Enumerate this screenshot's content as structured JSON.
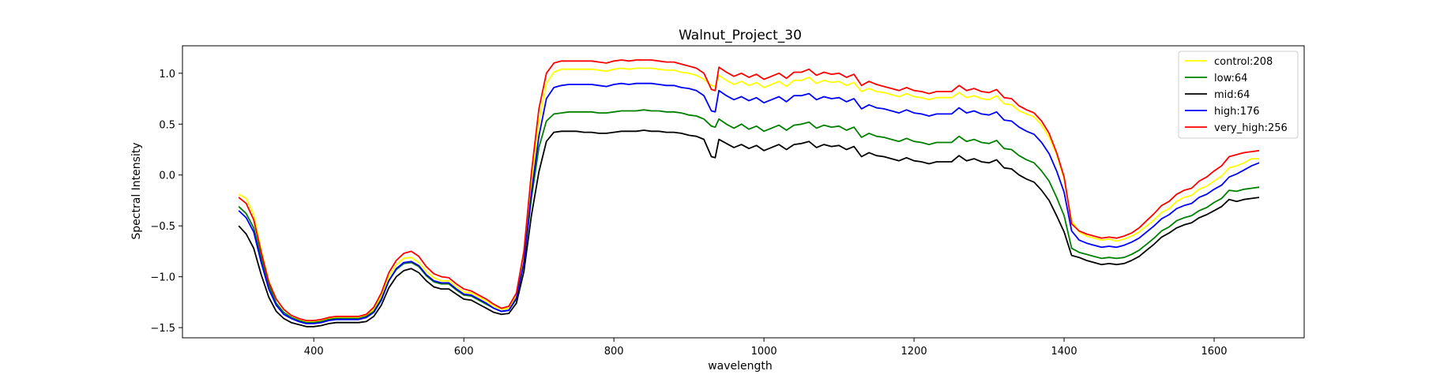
{
  "chart_data": {
    "type": "line",
    "title": "Walnut_Project_30",
    "xlabel": "wavelength",
    "ylabel": "Spectral Intensity",
    "xlim": [
      225,
      1720
    ],
    "ylim": [
      -1.6,
      1.27
    ],
    "xticks": [
      400,
      600,
      800,
      1000,
      1200,
      1400,
      1600
    ],
    "yticks": [
      -1.5,
      -1.0,
      -0.5,
      0.0,
      0.5,
      1.0
    ],
    "legend_position": "top-right",
    "grid": false,
    "x": [
      300,
      310,
      320,
      330,
      340,
      350,
      360,
      370,
      380,
      390,
      400,
      410,
      420,
      430,
      440,
      450,
      460,
      470,
      480,
      490,
      500,
      510,
      520,
      530,
      540,
      550,
      560,
      570,
      580,
      590,
      600,
      610,
      620,
      630,
      640,
      650,
      660,
      670,
      680,
      690,
      700,
      710,
      720,
      730,
      740,
      750,
      760,
      770,
      780,
      790,
      800,
      810,
      820,
      830,
      840,
      850,
      860,
      870,
      880,
      890,
      900,
      910,
      920,
      930,
      935,
      940,
      950,
      960,
      970,
      980,
      990,
      1000,
      1010,
      1020,
      1030,
      1040,
      1050,
      1060,
      1070,
      1080,
      1090,
      1100,
      1110,
      1120,
      1130,
      1140,
      1150,
      1160,
      1170,
      1180,
      1190,
      1200,
      1210,
      1220,
      1230,
      1240,
      1250,
      1260,
      1270,
      1280,
      1290,
      1300,
      1310,
      1320,
      1330,
      1340,
      1350,
      1360,
      1370,
      1380,
      1390,
      1400,
      1410,
      1420,
      1430,
      1440,
      1450,
      1460,
      1470,
      1480,
      1490,
      1500,
      1510,
      1520,
      1530,
      1540,
      1550,
      1560,
      1570,
      1580,
      1590,
      1600,
      1610,
      1620,
      1630,
      1640,
      1650,
      1660
    ],
    "series": [
      {
        "name": "control:208",
        "color": "#ffff00",
        "values": [
          -0.19,
          -0.23,
          -0.39,
          -0.74,
          -1.04,
          -1.22,
          -1.32,
          -1.38,
          -1.42,
          -1.44,
          -1.44,
          -1.43,
          -1.41,
          -1.4,
          -1.4,
          -1.4,
          -1.4,
          -1.38,
          -1.32,
          -1.19,
          -1.0,
          -0.88,
          -0.82,
          -0.81,
          -0.86,
          -0.95,
          -1.01,
          -1.04,
          -1.04,
          -1.1,
          -1.15,
          -1.16,
          -1.2,
          -1.24,
          -1.29,
          -1.32,
          -1.31,
          -1.19,
          -0.82,
          -0.1,
          0.52,
          0.9,
          1.01,
          1.04,
          1.04,
          1.04,
          1.04,
          1.04,
          1.03,
          1.02,
          1.04,
          1.05,
          1.04,
          1.05,
          1.05,
          1.05,
          1.04,
          1.03,
          1.03,
          1.01,
          1.0,
          0.98,
          0.94,
          0.88,
          0.87,
          0.98,
          0.93,
          0.89,
          0.92,
          0.88,
          0.91,
          0.86,
          0.89,
          0.92,
          0.87,
          0.93,
          0.93,
          0.96,
          0.9,
          0.93,
          0.91,
          0.92,
          0.88,
          0.91,
          0.82,
          0.85,
          0.82,
          0.81,
          0.79,
          0.77,
          0.8,
          0.77,
          0.76,
          0.74,
          0.76,
          0.76,
          0.76,
          0.81,
          0.76,
          0.78,
          0.75,
          0.74,
          0.78,
          0.7,
          0.69,
          0.63,
          0.6,
          0.57,
          0.49,
          0.37,
          0.2,
          -0.04,
          -0.45,
          -0.56,
          -0.6,
          -0.62,
          -0.64,
          -0.63,
          -0.65,
          -0.63,
          -0.6,
          -0.56,
          -0.5,
          -0.44,
          -0.37,
          -0.33,
          -0.26,
          -0.22,
          -0.2,
          -0.14,
          -0.11,
          -0.06,
          -0.01,
          0.07,
          0.09,
          0.12,
          0.16,
          0.16
        ]
      },
      {
        "name": "low:64",
        "color": "#008000",
        "values": [
          -0.31,
          -0.38,
          -0.52,
          -0.81,
          -1.08,
          -1.26,
          -1.35,
          -1.4,
          -1.43,
          -1.45,
          -1.45,
          -1.44,
          -1.42,
          -1.41,
          -1.41,
          -1.41,
          -1.41,
          -1.39,
          -1.34,
          -1.22,
          -1.04,
          -0.93,
          -0.87,
          -0.86,
          -0.9,
          -0.99,
          -1.05,
          -1.07,
          -1.07,
          -1.13,
          -1.18,
          -1.19,
          -1.23,
          -1.27,
          -1.31,
          -1.34,
          -1.33,
          -1.22,
          -0.87,
          -0.23,
          0.27,
          0.53,
          0.6,
          0.61,
          0.62,
          0.62,
          0.62,
          0.62,
          0.61,
          0.61,
          0.62,
          0.63,
          0.63,
          0.63,
          0.64,
          0.63,
          0.63,
          0.62,
          0.62,
          0.61,
          0.59,
          0.58,
          0.55,
          0.48,
          0.47,
          0.55,
          0.5,
          0.46,
          0.5,
          0.45,
          0.48,
          0.43,
          0.46,
          0.49,
          0.44,
          0.49,
          0.5,
          0.52,
          0.46,
          0.49,
          0.47,
          0.48,
          0.44,
          0.47,
          0.37,
          0.41,
          0.38,
          0.37,
          0.35,
          0.33,
          0.36,
          0.33,
          0.32,
          0.3,
          0.32,
          0.32,
          0.32,
          0.38,
          0.33,
          0.35,
          0.32,
          0.31,
          0.34,
          0.26,
          0.25,
          0.19,
          0.15,
          0.12,
          0.04,
          -0.06,
          -0.22,
          -0.4,
          -0.72,
          -0.76,
          -0.78,
          -0.8,
          -0.82,
          -0.81,
          -0.82,
          -0.81,
          -0.78,
          -0.74,
          -0.68,
          -0.62,
          -0.55,
          -0.51,
          -0.45,
          -0.42,
          -0.4,
          -0.35,
          -0.32,
          -0.27,
          -0.23,
          -0.15,
          -0.16,
          -0.14,
          -0.13,
          -0.12
        ]
      },
      {
        "name": "mid:64",
        "color": "#000000",
        "values": [
          -0.5,
          -0.58,
          -0.72,
          -0.98,
          -1.2,
          -1.34,
          -1.41,
          -1.45,
          -1.47,
          -1.49,
          -1.49,
          -1.48,
          -1.46,
          -1.45,
          -1.45,
          -1.45,
          -1.45,
          -1.44,
          -1.39,
          -1.28,
          -1.11,
          -1.0,
          -0.94,
          -0.92,
          -0.96,
          -1.04,
          -1.1,
          -1.12,
          -1.12,
          -1.17,
          -1.22,
          -1.23,
          -1.27,
          -1.31,
          -1.35,
          -1.37,
          -1.36,
          -1.26,
          -0.95,
          -0.4,
          0.03,
          0.33,
          0.42,
          0.43,
          0.43,
          0.43,
          0.42,
          0.42,
          0.41,
          0.41,
          0.42,
          0.43,
          0.43,
          0.43,
          0.44,
          0.43,
          0.43,
          0.42,
          0.42,
          0.41,
          0.39,
          0.38,
          0.35,
          0.18,
          0.17,
          0.35,
          0.31,
          0.27,
          0.3,
          0.26,
          0.29,
          0.24,
          0.27,
          0.3,
          0.25,
          0.3,
          0.31,
          0.33,
          0.27,
          0.3,
          0.28,
          0.29,
          0.25,
          0.28,
          0.18,
          0.22,
          0.19,
          0.18,
          0.16,
          0.14,
          0.17,
          0.14,
          0.13,
          0.11,
          0.13,
          0.13,
          0.13,
          0.19,
          0.14,
          0.16,
          0.13,
          0.12,
          0.15,
          0.07,
          0.06,
          0.0,
          -0.04,
          -0.07,
          -0.15,
          -0.25,
          -0.4,
          -0.56,
          -0.79,
          -0.81,
          -0.84,
          -0.86,
          -0.88,
          -0.87,
          -0.88,
          -0.87,
          -0.84,
          -0.8,
          -0.74,
          -0.68,
          -0.61,
          -0.57,
          -0.52,
          -0.49,
          -0.47,
          -0.42,
          -0.39,
          -0.35,
          -0.31,
          -0.24,
          -0.26,
          -0.24,
          -0.23,
          -0.22
        ]
      },
      {
        "name": "high:176",
        "color": "#0000ff",
        "values": [
          -0.35,
          -0.42,
          -0.56,
          -0.86,
          -1.12,
          -1.28,
          -1.37,
          -1.41,
          -1.44,
          -1.46,
          -1.46,
          -1.45,
          -1.43,
          -1.42,
          -1.42,
          -1.42,
          -1.42,
          -1.4,
          -1.35,
          -1.23,
          -1.04,
          -0.92,
          -0.86,
          -0.85,
          -0.89,
          -0.98,
          -1.04,
          -1.06,
          -1.06,
          -1.12,
          -1.17,
          -1.18,
          -1.22,
          -1.26,
          -1.31,
          -1.34,
          -1.33,
          -1.21,
          -0.86,
          -0.18,
          0.38,
          0.75,
          0.86,
          0.88,
          0.89,
          0.89,
          0.89,
          0.89,
          0.88,
          0.87,
          0.89,
          0.9,
          0.89,
          0.9,
          0.9,
          0.9,
          0.89,
          0.88,
          0.88,
          0.86,
          0.85,
          0.83,
          0.78,
          0.63,
          0.62,
          0.83,
          0.78,
          0.74,
          0.77,
          0.73,
          0.76,
          0.71,
          0.74,
          0.77,
          0.72,
          0.78,
          0.78,
          0.8,
          0.74,
          0.77,
          0.75,
          0.76,
          0.72,
          0.75,
          0.65,
          0.69,
          0.66,
          0.65,
          0.63,
          0.61,
          0.64,
          0.61,
          0.6,
          0.58,
          0.6,
          0.6,
          0.6,
          0.66,
          0.61,
          0.63,
          0.6,
          0.59,
          0.62,
          0.54,
          0.53,
          0.47,
          0.43,
          0.4,
          0.32,
          0.21,
          0.04,
          -0.17,
          -0.55,
          -0.64,
          -0.67,
          -0.69,
          -0.71,
          -0.7,
          -0.71,
          -0.69,
          -0.66,
          -0.62,
          -0.56,
          -0.5,
          -0.43,
          -0.39,
          -0.33,
          -0.3,
          -0.28,
          -0.22,
          -0.19,
          -0.14,
          -0.1,
          -0.02,
          0.01,
          0.05,
          0.09,
          0.12
        ]
      },
      {
        "name": "very_high:256",
        "color": "#ff0000",
        "values": [
          -0.22,
          -0.28,
          -0.44,
          -0.76,
          -1.05,
          -1.22,
          -1.32,
          -1.38,
          -1.41,
          -1.43,
          -1.43,
          -1.42,
          -1.4,
          -1.39,
          -1.39,
          -1.39,
          -1.39,
          -1.37,
          -1.3,
          -1.16,
          -0.96,
          -0.84,
          -0.77,
          -0.75,
          -0.8,
          -0.9,
          -0.97,
          -1.0,
          -1.01,
          -1.07,
          -1.12,
          -1.14,
          -1.18,
          -1.22,
          -1.27,
          -1.31,
          -1.29,
          -1.16,
          -0.75,
          0.02,
          0.65,
          1.0,
          1.1,
          1.12,
          1.12,
          1.12,
          1.12,
          1.12,
          1.11,
          1.1,
          1.12,
          1.13,
          1.12,
          1.13,
          1.13,
          1.13,
          1.12,
          1.11,
          1.11,
          1.09,
          1.07,
          1.05,
          1.0,
          0.84,
          0.83,
          1.06,
          1.01,
          0.97,
          1.0,
          0.96,
          0.99,
          0.94,
          0.97,
          1.0,
          0.95,
          1.01,
          1.01,
          1.04,
          0.98,
          1.01,
          0.99,
          1.0,
          0.96,
          0.99,
          0.88,
          0.92,
          0.89,
          0.87,
          0.85,
          0.83,
          0.86,
          0.83,
          0.82,
          0.8,
          0.82,
          0.82,
          0.82,
          0.88,
          0.83,
          0.85,
          0.82,
          0.81,
          0.84,
          0.76,
          0.75,
          0.68,
          0.64,
          0.61,
          0.53,
          0.41,
          0.22,
          -0.02,
          -0.48,
          -0.55,
          -0.58,
          -0.6,
          -0.62,
          -0.61,
          -0.62,
          -0.6,
          -0.57,
          -0.52,
          -0.45,
          -0.38,
          -0.3,
          -0.26,
          -0.19,
          -0.15,
          -0.13,
          -0.06,
          -0.02,
          0.04,
          0.09,
          0.18,
          0.2,
          0.22,
          0.23,
          0.24
        ]
      }
    ]
  }
}
